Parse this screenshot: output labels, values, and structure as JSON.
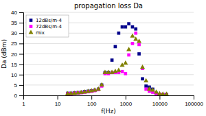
{
  "chart_data": {
    "type": "scatter",
    "title": "propagation loss Da",
    "x_label": "f(Hz)",
    "y_label": "Da (dBm)",
    "log": "x",
    "xlim": [
      1,
      100000
    ],
    "xticks": [
      1,
      10,
      100,
      1000,
      10000,
      100000
    ],
    "ylim": [
      0,
      40
    ],
    "yticks": [
      0,
      5,
      10,
      15,
      20,
      25,
      30,
      35,
      40
    ],
    "grid": true,
    "legend": "upper left",
    "x": [
      20,
      25,
      31.5,
      40,
      50,
      63,
      80,
      100,
      125,
      160,
      200,
      250,
      315,
      400,
      500,
      630,
      800,
      1000,
      1250,
      1600,
      2000,
      2500,
      3150,
      4000,
      5000,
      6300,
      8000,
      10000,
      12500,
      16000
    ],
    "series": [
      {
        "name": "12dBs/m-4",
        "color": "#00008b",
        "marker": "square",
        "values": [
          1.0,
          1.0,
          1.2,
          1.3,
          1.5,
          1.8,
          2.0,
          2.2,
          2.5,
          3.0,
          5.0,
          11.0,
          11.0,
          17.0,
          23.5,
          30.0,
          33.0,
          33.0,
          34.5,
          33.0,
          32.0,
          20.0,
          8.0,
          4.5,
          4.0,
          3.0,
          1.0,
          0.5,
          0.5,
          0.5
        ]
      },
      {
        "name": "72dBs/m-4",
        "color": "#ff00ff",
        "marker": "square",
        "values": [
          0.8,
          0.9,
          1.0,
          1.2,
          1.3,
          1.5,
          1.8,
          2.0,
          2.3,
          2.8,
          4.5,
          10.5,
          10.5,
          11.0,
          11.0,
          11.0,
          11.5,
          10.5,
          19.5,
          25.0,
          30.0,
          24.5,
          13.0,
          3.0,
          2.0,
          1.5,
          0.8,
          0.5,
          0.5,
          0.3
        ]
      },
      {
        "name": "mix",
        "color": "#808000",
        "marker": "triangle",
        "values": [
          0.8,
          0.9,
          1.0,
          1.2,
          1.4,
          1.6,
          1.9,
          2.2,
          2.5,
          3.0,
          5.0,
          11.0,
          11.0,
          11.0,
          11.5,
          12.0,
          14.5,
          15.5,
          22.0,
          28.5,
          27.0,
          26.0,
          13.5,
          7.0,
          3.0,
          2.5,
          1.5,
          0.8,
          0.5,
          0.5
        ]
      }
    ]
  }
}
